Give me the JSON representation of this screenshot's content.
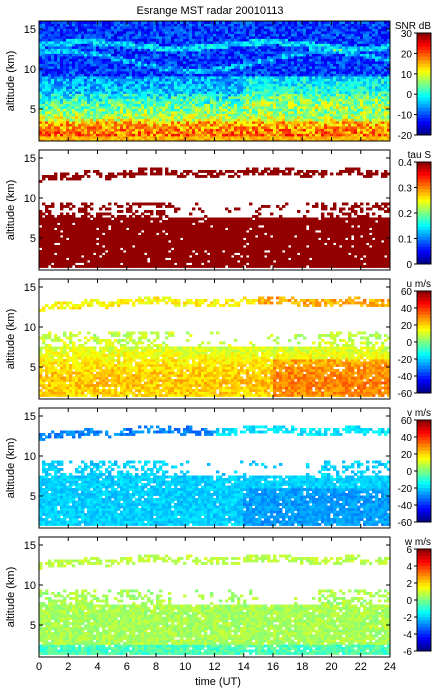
{
  "chart_data": {
    "title": "Esrange MST radar 20010113",
    "x": {
      "label": "time (UT)",
      "range": [
        0,
        24
      ],
      "ticks": [
        "0",
        "2",
        "4",
        "6",
        "8",
        "10",
        "12",
        "14",
        "16",
        "18",
        "20",
        "22",
        "24"
      ]
    },
    "panels": [
      {
        "id": "snr",
        "type": "heatmap",
        "ylabel": "altitude (km)",
        "yrange": [
          1,
          16
        ],
        "yticks": [
          "5",
          "10",
          "15"
        ],
        "colorbar": {
          "label": "SNR dB",
          "range": [
            -20,
            30
          ],
          "ticks": [
            "30",
            "20",
            "10",
            "0",
            "-10",
            "-20"
          ],
          "colormap": "jet"
        }
      },
      {
        "id": "tau",
        "type": "heatmap",
        "ylabel": "altitude (km)",
        "yrange": [
          1,
          16
        ],
        "yticks": [
          "5",
          "10",
          "15"
        ],
        "colorbar": {
          "label": "tau S",
          "range": [
            0,
            0.4
          ],
          "ticks": [
            "0.4",
            "0.3",
            "0.2",
            "0.1",
            "0"
          ],
          "colormap": "jet"
        }
      },
      {
        "id": "u",
        "type": "heatmap",
        "ylabel": "altitude (km)",
        "yrange": [
          1,
          16
        ],
        "yticks": [
          "5",
          "10",
          "15"
        ],
        "colorbar": {
          "label": "u m/s",
          "range": [
            -60,
            60
          ],
          "ticks": [
            "60",
            "40",
            "20",
            "0",
            "-20",
            "-40",
            "-60"
          ],
          "colormap": "jet"
        }
      },
      {
        "id": "v",
        "type": "heatmap",
        "ylabel": "altitude (km)",
        "yrange": [
          1,
          16
        ],
        "yticks": [
          "5",
          "10",
          "15"
        ],
        "colorbar": {
          "label": "v m/s",
          "range": [
            -60,
            60
          ],
          "ticks": [
            "60",
            "40",
            "20",
            "0",
            "-20",
            "-40",
            "-60"
          ],
          "colormap": "jet"
        }
      },
      {
        "id": "w",
        "type": "heatmap",
        "ylabel": "altitude (km)",
        "yrange": [
          1,
          16
        ],
        "yticks": [
          "5",
          "10",
          "15"
        ],
        "colorbar": {
          "label": "w m/s",
          "range": [
            -6,
            6
          ],
          "ticks": [
            "6",
            "4",
            "2",
            "0",
            "-2",
            "-4",
            "-6"
          ],
          "colormap": "jet"
        }
      }
    ]
  }
}
